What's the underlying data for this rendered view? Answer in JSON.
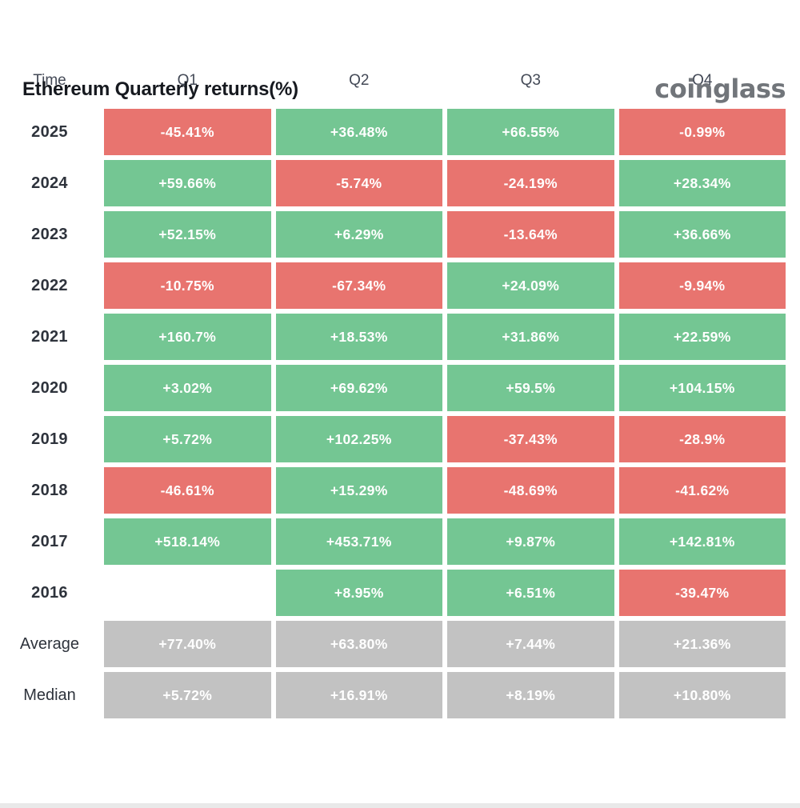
{
  "header": {
    "title": "Ethereum Quarterly returns(%)",
    "logo": "coinglass"
  },
  "colors": {
    "positive": "#74c693",
    "negative": "#e8746f",
    "neutral": "#c2c2c2"
  },
  "table": {
    "columns": [
      "Time",
      "Q1",
      "Q2",
      "Q3",
      "Q4"
    ],
    "rows": [
      {
        "label": "2025",
        "cells": [
          {
            "text": "-45.41%",
            "type": "negative"
          },
          {
            "text": "+36.48%",
            "type": "positive"
          },
          {
            "text": "+66.55%",
            "type": "positive"
          },
          {
            "text": "-0.99%",
            "type": "negative"
          }
        ]
      },
      {
        "label": "2024",
        "cells": [
          {
            "text": "+59.66%",
            "type": "positive"
          },
          {
            "text": "-5.74%",
            "type": "negative"
          },
          {
            "text": "-24.19%",
            "type": "negative"
          },
          {
            "text": "+28.34%",
            "type": "positive"
          }
        ]
      },
      {
        "label": "2023",
        "cells": [
          {
            "text": "+52.15%",
            "type": "positive"
          },
          {
            "text": "+6.29%",
            "type": "positive"
          },
          {
            "text": "-13.64%",
            "type": "negative"
          },
          {
            "text": "+36.66%",
            "type": "positive"
          }
        ]
      },
      {
        "label": "2022",
        "cells": [
          {
            "text": "-10.75%",
            "type": "negative"
          },
          {
            "text": "-67.34%",
            "type": "negative"
          },
          {
            "text": "+24.09%",
            "type": "positive"
          },
          {
            "text": "-9.94%",
            "type": "negative"
          }
        ]
      },
      {
        "label": "2021",
        "cells": [
          {
            "text": "+160.7%",
            "type": "positive"
          },
          {
            "text": "+18.53%",
            "type": "positive"
          },
          {
            "text": "+31.86%",
            "type": "positive"
          },
          {
            "text": "+22.59%",
            "type": "positive"
          }
        ]
      },
      {
        "label": "2020",
        "cells": [
          {
            "text": "+3.02%",
            "type": "positive"
          },
          {
            "text": "+69.62%",
            "type": "positive"
          },
          {
            "text": "+59.5%",
            "type": "positive"
          },
          {
            "text": "+104.15%",
            "type": "positive"
          }
        ]
      },
      {
        "label": "2019",
        "cells": [
          {
            "text": "+5.72%",
            "type": "positive"
          },
          {
            "text": "+102.25%",
            "type": "positive"
          },
          {
            "text": "-37.43%",
            "type": "negative"
          },
          {
            "text": "-28.9%",
            "type": "negative"
          }
        ]
      },
      {
        "label": "2018",
        "cells": [
          {
            "text": "-46.61%",
            "type": "negative"
          },
          {
            "text": "+15.29%",
            "type": "positive"
          },
          {
            "text": "-48.69%",
            "type": "negative"
          },
          {
            "text": "-41.62%",
            "type": "negative"
          }
        ]
      },
      {
        "label": "2017",
        "cells": [
          {
            "text": "+518.14%",
            "type": "positive"
          },
          {
            "text": "+453.71%",
            "type": "positive"
          },
          {
            "text": "+9.87%",
            "type": "positive"
          },
          {
            "text": "+142.81%",
            "type": "positive"
          }
        ]
      },
      {
        "label": "2016",
        "cells": [
          {
            "text": "",
            "type": "empty"
          },
          {
            "text": "+8.95%",
            "type": "positive"
          },
          {
            "text": "+6.51%",
            "type": "positive"
          },
          {
            "text": "-39.47%",
            "type": "negative"
          }
        ]
      },
      {
        "label": "Average",
        "cells": [
          {
            "text": "+77.40%",
            "type": "neutral"
          },
          {
            "text": "+63.80%",
            "type": "neutral"
          },
          {
            "text": "+7.44%",
            "type": "neutral"
          },
          {
            "text": "+21.36%",
            "type": "neutral"
          }
        ]
      },
      {
        "label": "Median",
        "cells": [
          {
            "text": "+5.72%",
            "type": "neutral"
          },
          {
            "text": "+16.91%",
            "type": "neutral"
          },
          {
            "text": "+8.19%",
            "type": "neutral"
          },
          {
            "text": "+10.80%",
            "type": "neutral"
          }
        ]
      }
    ]
  },
  "chart_data": {
    "type": "heatmap",
    "title": "Ethereum Quarterly returns(%)",
    "categories": [
      "Q1",
      "Q2",
      "Q3",
      "Q4"
    ],
    "rows": [
      "2025",
      "2024",
      "2023",
      "2022",
      "2021",
      "2020",
      "2019",
      "2018",
      "2017",
      "2016",
      "Average",
      "Median"
    ],
    "series": [
      {
        "name": "2025",
        "values": [
          -45.41,
          36.48,
          66.55,
          -0.99
        ]
      },
      {
        "name": "2024",
        "values": [
          59.66,
          -5.74,
          -24.19,
          28.34
        ]
      },
      {
        "name": "2023",
        "values": [
          52.15,
          6.29,
          -13.64,
          36.66
        ]
      },
      {
        "name": "2022",
        "values": [
          -10.75,
          -67.34,
          24.09,
          -9.94
        ]
      },
      {
        "name": "2021",
        "values": [
          160.7,
          18.53,
          31.86,
          22.59
        ]
      },
      {
        "name": "2020",
        "values": [
          3.02,
          69.62,
          59.5,
          104.15
        ]
      },
      {
        "name": "2019",
        "values": [
          5.72,
          102.25,
          -37.43,
          -28.9
        ]
      },
      {
        "name": "2018",
        "values": [
          -46.61,
          15.29,
          -48.69,
          -41.62
        ]
      },
      {
        "name": "2017",
        "values": [
          518.14,
          453.71,
          9.87,
          142.81
        ]
      },
      {
        "name": "2016",
        "values": [
          null,
          8.95,
          6.51,
          -39.47
        ]
      },
      {
        "name": "Average",
        "values": [
          77.4,
          63.8,
          7.44,
          21.36
        ]
      },
      {
        "name": "Median",
        "values": [
          5.72,
          16.91,
          8.19,
          10.8
        ]
      }
    ],
    "color_coding": "green = positive quarter, red = negative quarter, gray = summary rows",
    "legend_position": "none",
    "grid": false
  }
}
